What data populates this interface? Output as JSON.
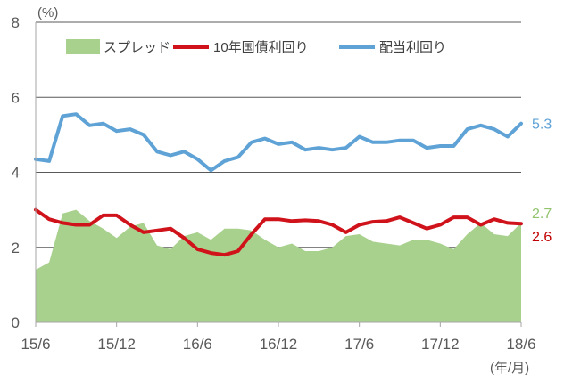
{
  "chart_data": {
    "type": "line",
    "y_unit_label": "(%)",
    "x_unit_label": "(年/月)",
    "ylim": [
      0,
      8
    ],
    "y_ticks": [
      "0",
      "2",
      "4",
      "6",
      "8"
    ],
    "x_tick_labels": [
      "15/6",
      "15/12",
      "16/6",
      "16/12",
      "17/6",
      "17/12",
      "18/6"
    ],
    "grid": "horizontal",
    "legend_position": "top",
    "series": [
      {
        "name": "スプレッド",
        "render": "area",
        "color": "#a9d18e",
        "end_label": "2.7",
        "end_label_color": "#92c46d",
        "values": [
          1.4,
          1.6,
          2.9,
          3.0,
          2.7,
          2.5,
          2.25,
          2.55,
          2.65,
          2.05,
          1.95,
          2.3,
          2.4,
          2.2,
          2.5,
          2.5,
          2.45,
          2.2,
          2.0,
          2.1,
          1.9,
          1.9,
          2.0,
          2.3,
          2.35,
          2.15,
          2.1,
          2.05,
          2.2,
          2.2,
          2.1,
          1.95,
          2.35,
          2.65,
          2.35,
          2.3,
          2.65
        ]
      },
      {
        "name": "10年国債利回り",
        "render": "line",
        "color": "#d0121b",
        "end_label": "2.6",
        "end_label_color": "#c00000",
        "values": [
          3.0,
          2.75,
          2.65,
          2.6,
          2.6,
          2.85,
          2.85,
          2.6,
          2.4,
          2.45,
          2.5,
          2.25,
          1.95,
          1.85,
          1.8,
          1.9,
          2.35,
          2.75,
          2.75,
          2.7,
          2.72,
          2.7,
          2.6,
          2.4,
          2.6,
          2.68,
          2.7,
          2.8,
          2.65,
          2.5,
          2.6,
          2.8,
          2.8,
          2.6,
          2.75,
          2.65,
          2.63
        ]
      },
      {
        "name": "配当利回り",
        "render": "line",
        "color": "#5ea2d6",
        "end_label": "5.3",
        "end_label_color": "#5ea2d6",
        "values": [
          4.35,
          4.3,
          5.5,
          5.55,
          5.25,
          5.3,
          5.1,
          5.15,
          5.0,
          4.55,
          4.45,
          4.55,
          4.35,
          4.05,
          4.3,
          4.4,
          4.8,
          4.9,
          4.75,
          4.8,
          4.6,
          4.65,
          4.6,
          4.65,
          4.95,
          4.8,
          4.8,
          4.85,
          4.85,
          4.65,
          4.7,
          4.7,
          5.15,
          5.25,
          5.15,
          4.95,
          5.3
        ]
      }
    ]
  }
}
